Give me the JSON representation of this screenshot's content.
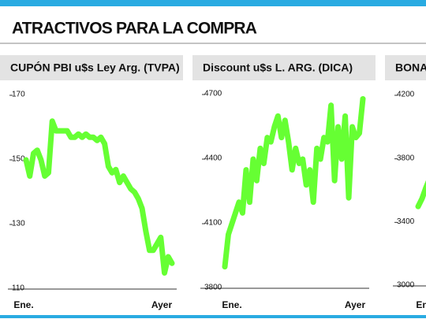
{
  "header": {
    "title": "ATRACTIVOS PARA LA COMPRA"
  },
  "chart_data": [
    {
      "type": "line",
      "title": "CUPÓN PBI u$s Ley Arg. (TVPA)",
      "color": "#66ff33",
      "categories": [
        "Ene.",
        null,
        null,
        null,
        null,
        null,
        null,
        null,
        null,
        null,
        null,
        null,
        null,
        null,
        null,
        null,
        null,
        null,
        null,
        null,
        null,
        null,
        null,
        null,
        null,
        null,
        null,
        null,
        null,
        null,
        null,
        null,
        null,
        null,
        null,
        null,
        null,
        null,
        null,
        "Ayer"
      ],
      "values": [
        150,
        145,
        152,
        153,
        150,
        145,
        146,
        162,
        159,
        159,
        159,
        159,
        157,
        157,
        158,
        157,
        158,
        157,
        157,
        156,
        157,
        155,
        148,
        146,
        147,
        143,
        145,
        143,
        141,
        140,
        138,
        135,
        128,
        122,
        122,
        124,
        126,
        115,
        120,
        118
      ],
      "ylim": [
        110,
        170
      ],
      "yticks": [
        110,
        130,
        150,
        170
      ]
    },
    {
      "type": "line",
      "title": "Discount u$s L. ARG. (DICA)",
      "color": "#66ff33",
      "categories": [
        "Ene.",
        null,
        null,
        null,
        null,
        null,
        null,
        null,
        null,
        null,
        null,
        null,
        null,
        null,
        null,
        null,
        null,
        null,
        null,
        null,
        null,
        null,
        null,
        null,
        null,
        null,
        null,
        null,
        null,
        null,
        null,
        null,
        null,
        null,
        null,
        null,
        null,
        null,
        null,
        "Ayer"
      ],
      "values": [
        3900,
        4050,
        4100,
        4150,
        4200,
        4150,
        4350,
        4200,
        4400,
        4300,
        4450,
        4380,
        4500,
        4480,
        4550,
        4600,
        4500,
        4580,
        4480,
        4350,
        4450,
        4380,
        4400,
        4280,
        4350,
        4200,
        4450,
        4400,
        4500,
        4480,
        4650,
        4300,
        4550,
        4400,
        4600,
        4220,
        4550,
        4500,
        4520,
        4680
      ],
      "ylim": [
        3800,
        4700
      ],
      "yticks": [
        3800,
        4100,
        4400,
        4700
      ]
    },
    {
      "type": "line",
      "title": "BONA",
      "color": "#66ff33",
      "categories": [
        "Ene.",
        null,
        null,
        null
      ],
      "values": [
        3500,
        3550,
        3620,
        3680
      ],
      "ylim": [
        3000,
        4200
      ],
      "yticks": [
        3000,
        3400,
        3800,
        4200
      ]
    }
  ]
}
